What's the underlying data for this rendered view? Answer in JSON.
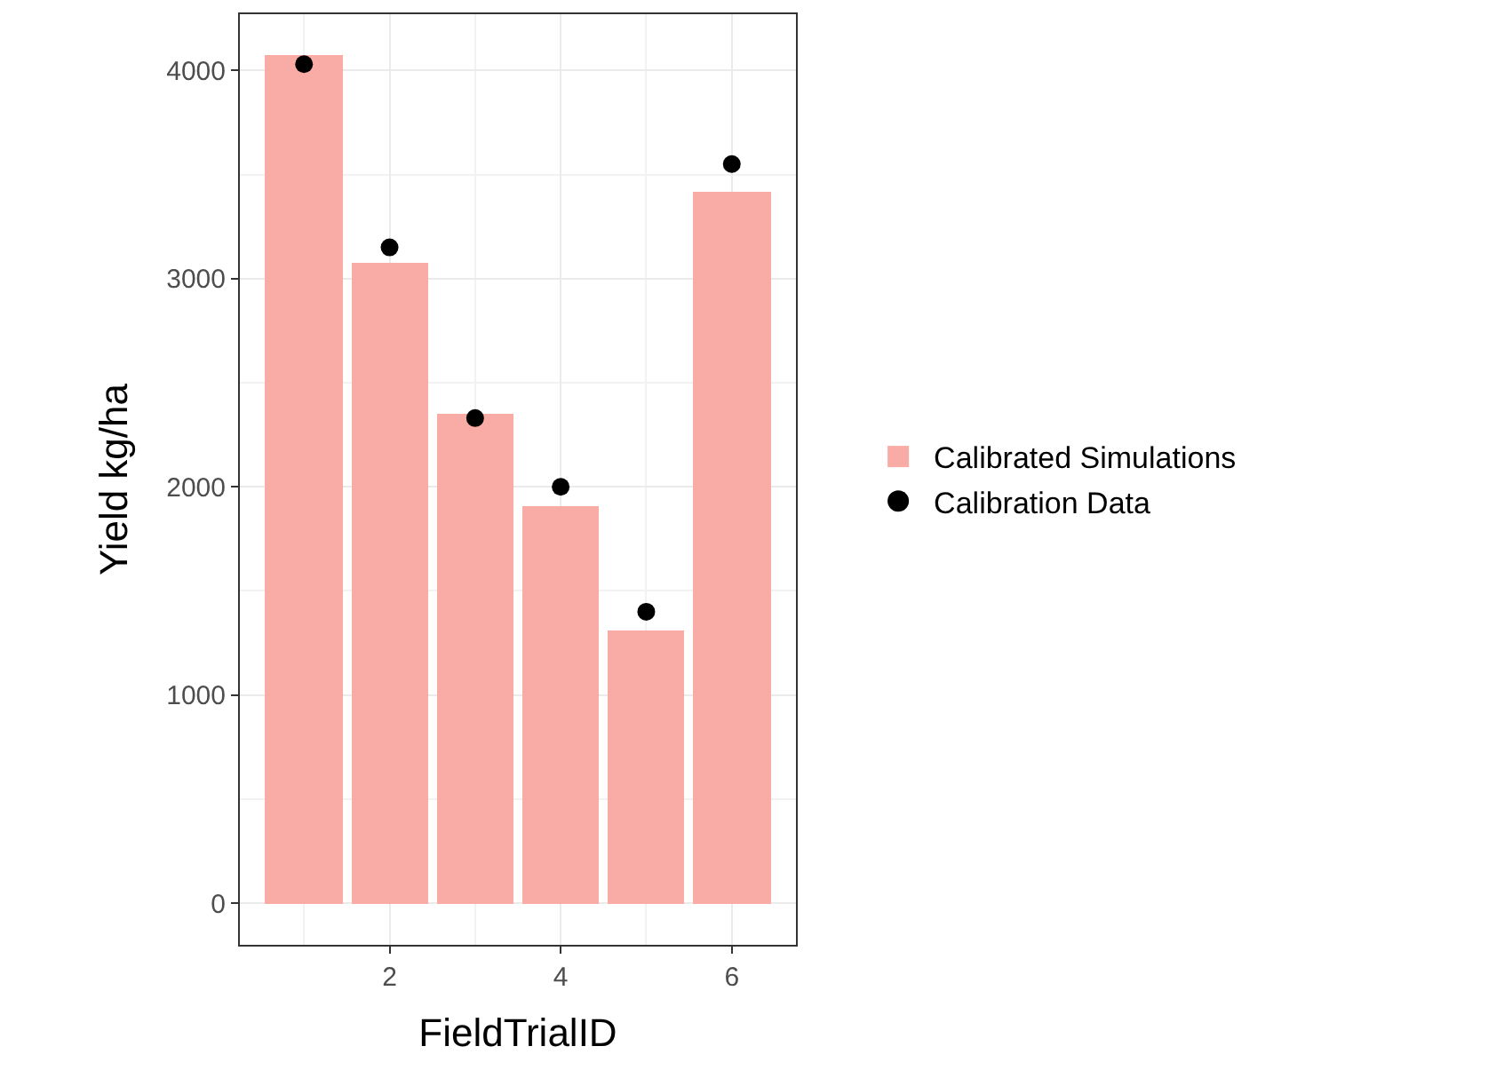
{
  "chart_data": {
    "type": "bar",
    "xlabel": "FieldTrialID",
    "ylabel": "Yield kg/ha",
    "x": [
      1,
      2,
      3,
      4,
      5,
      6
    ],
    "series": [
      {
        "name": "Calibrated Simulations",
        "color": "#f9aca6",
        "values": [
          4070,
          3080,
          2350,
          1910,
          1310,
          3420
        ]
      },
      {
        "name": "Calibration Data",
        "type": "scatter",
        "color": "#000000",
        "values": [
          4030,
          3150,
          2330,
          2000,
          1400,
          3550
        ]
      }
    ],
    "xlim": [
      0.25,
      6.75
    ],
    "xticks": [
      2,
      4,
      6
    ],
    "ylim": [
      -200,
      4270
    ],
    "yticks": [
      0,
      1000,
      2000,
      3000,
      4000
    ],
    "grid": true,
    "legend": "right",
    "marker": "circle"
  }
}
